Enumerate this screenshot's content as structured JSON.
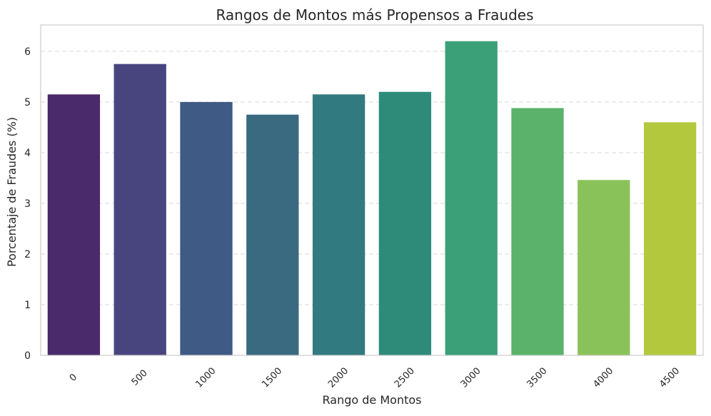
{
  "chart_data": {
    "type": "bar",
    "title": "Rangos de Montos más Propensos a Fraudes",
    "xlabel": "Rango de Montos",
    "ylabel": "Porcentaje de Fraudes (%)",
    "categories": [
      "0",
      "500",
      "1000",
      "1500",
      "2000",
      "2500",
      "3000",
      "3500",
      "4000",
      "4500"
    ],
    "values": [
      5.15,
      5.75,
      5.0,
      4.75,
      5.15,
      5.2,
      6.2,
      4.88,
      3.46,
      4.6
    ],
    "ylim": [
      0,
      6.52
    ],
    "yticks": [
      "0",
      "1",
      "2",
      "3",
      "4",
      "5",
      "6"
    ],
    "grid": "y, dashed",
    "colors": [
      "#4a2a6a",
      "#48457e",
      "#3f5a85",
      "#3a6a80",
      "#317a80",
      "#2e8b7a",
      "#3ba078",
      "#5bb26b",
      "#8ac25a",
      "#b3c83c"
    ],
    "axis_color": "#cccccc",
    "grid_color": "#d9d9d9"
  }
}
